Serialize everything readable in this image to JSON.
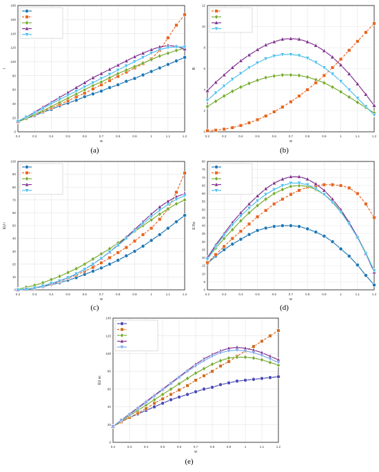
{
  "chart_data": [
    {
      "type": "line",
      "caption": "(a)",
      "xlabel": "w",
      "ylabel": "l",
      "xlim": [
        0.2,
        1.2
      ],
      "ylim": [
        0,
        180
      ],
      "xticks": [
        "0.2",
        "0.3",
        "0.4",
        "0.5",
        "0.6",
        "0.7",
        "0.8",
        "0.9",
        "1",
        "1.1",
        "1.2"
      ],
      "yticks": [
        "0",
        "20",
        "40",
        "60",
        "80",
        "100",
        "120",
        "140",
        "160",
        "180"
      ],
      "grid": true,
      "legend_position": "top-left",
      "x": [
        0.2,
        0.25,
        0.3,
        0.35,
        0.4,
        0.45,
        0.5,
        0.55,
        0.6,
        0.65,
        0.7,
        0.75,
        0.8,
        0.85,
        0.9,
        0.95,
        1.0,
        1.05,
        1.1,
        1.15,
        1.2
      ],
      "series": [
        {
          "name": "",
          "color": "#1f77b4",
          "marker": "circle",
          "dash": false,
          "values": [
            15,
            19,
            23,
            28,
            32,
            37,
            41,
            45,
            50,
            54,
            58,
            63,
            67,
            72,
            76,
            81,
            86,
            91,
            96,
            101,
            106
          ]
        },
        {
          "name": "",
          "color": "#e8641e",
          "marker": "square",
          "dash": true,
          "values": [
            14,
            19,
            24,
            29,
            34,
            39,
            44,
            50,
            55,
            61,
            67,
            73,
            79,
            85,
            91,
            97,
            104,
            116,
            134,
            152,
            167
          ]
        },
        {
          "name": "",
          "color": "#77ac30",
          "marker": "diamond",
          "dash": false,
          "values": [
            14,
            19,
            25,
            30,
            36,
            42,
            48,
            54,
            60,
            66,
            71,
            77,
            83,
            88,
            93,
            98,
            103,
            108,
            112,
            116,
            119
          ]
        },
        {
          "name": "",
          "color": "#7e2f8e",
          "marker": "triangle-up",
          "dash": false,
          "values": [
            15,
            21,
            28,
            35,
            42,
            49,
            56,
            63,
            70,
            77,
            83,
            89,
            95,
            101,
            107,
            112,
            117,
            121,
            123,
            122,
            118
          ]
        },
        {
          "name": "",
          "color": "#4dbeee",
          "marker": "triangle-down",
          "dash": false,
          "values": [
            15,
            21,
            27,
            33,
            40,
            46,
            52,
            58,
            64,
            70,
            76,
            82,
            88,
            94,
            100,
            106,
            112,
            117,
            120,
            121,
            121
          ]
        }
      ]
    },
    {
      "type": "line",
      "caption": "(b)",
      "xlabel": "w",
      "ylabel": "B",
      "xlim": [
        0.2,
        1.2
      ],
      "ylim": [
        0,
        12
      ],
      "xticks": [
        "0.2",
        "0.3",
        "0.4",
        "0.5",
        "0.6",
        "0.7",
        "0.8",
        "0.9",
        "1",
        "1.1",
        "1.2"
      ],
      "yticks": [
        "0",
        "2",
        "4",
        "6",
        "8",
        "10",
        "12"
      ],
      "grid": true,
      "legend_position": "top-left",
      "x": [
        0.2,
        0.25,
        0.3,
        0.35,
        0.4,
        0.45,
        0.5,
        0.55,
        0.6,
        0.65,
        0.7,
        0.75,
        0.8,
        0.85,
        0.9,
        0.95,
        1.0,
        1.05,
        1.1,
        1.15,
        1.2
      ],
      "series": [
        {
          "name": "",
          "color": "#e8641e",
          "marker": "square",
          "dash": true,
          "values": [
            0.1,
            0.15,
            0.25,
            0.4,
            0.6,
            0.85,
            1.15,
            1.5,
            1.9,
            2.35,
            2.85,
            3.4,
            4.0,
            4.65,
            5.35,
            6.1,
            6.9,
            7.75,
            8.6,
            9.45,
            10.3
          ]
        },
        {
          "name": "",
          "color": "#77ac30",
          "marker": "diamond",
          "dash": false,
          "values": [
            2.4,
            2.9,
            3.4,
            3.85,
            4.25,
            4.6,
            4.9,
            5.15,
            5.3,
            5.4,
            5.4,
            5.35,
            5.2,
            4.95,
            4.65,
            4.25,
            3.8,
            3.3,
            2.8,
            2.3,
            1.8
          ]
        },
        {
          "name": "",
          "color": "#7e2f8e",
          "marker": "triangle-up",
          "dash": false,
          "values": [
            3.9,
            4.7,
            5.4,
            6.1,
            6.75,
            7.3,
            7.8,
            8.25,
            8.55,
            8.8,
            8.85,
            8.8,
            8.55,
            8.2,
            7.7,
            7.1,
            6.35,
            5.5,
            4.55,
            3.55,
            2.5
          ]
        },
        {
          "name": "",
          "color": "#4dbeee",
          "marker": "triangle-down",
          "dash": false,
          "values": [
            3.0,
            3.7,
            4.35,
            5.0,
            5.55,
            6.1,
            6.55,
            6.95,
            7.2,
            7.35,
            7.35,
            7.25,
            7.0,
            6.6,
            6.1,
            5.5,
            4.8,
            4.0,
            3.2,
            2.4,
            1.6
          ]
        }
      ]
    },
    {
      "type": "line",
      "caption": "(c)",
      "xlabel": "w",
      "ylabel": "EU r",
      "xlim": [
        0.2,
        1.2
      ],
      "ylim": [
        0,
        100
      ],
      "xticks": [
        "0.2",
        "0.3",
        "0.4",
        "0.5",
        "0.6",
        "0.7",
        "0.8",
        "0.9",
        "1",
        "1.1",
        "1.2"
      ],
      "yticks": [
        "0",
        "10",
        "20",
        "30",
        "40",
        "50",
        "60",
        "70",
        "80",
        "90",
        "100"
      ],
      "grid": true,
      "legend_position": "top-left",
      "x": [
        0.2,
        0.25,
        0.3,
        0.35,
        0.4,
        0.45,
        0.5,
        0.55,
        0.6,
        0.65,
        0.7,
        0.75,
        0.8,
        0.85,
        0.9,
        0.95,
        1.0,
        1.05,
        1.1,
        1.15,
        1.2
      ],
      "series": [
        {
          "name": "",
          "color": "#1f77b4",
          "marker": "circle",
          "dash": false,
          "values": [
            0,
            0.5,
            1.5,
            2.5,
            4,
            5.5,
            7.5,
            9.5,
            12,
            14.5,
            17,
            20,
            23,
            26.5,
            30,
            34,
            38.5,
            43,
            48,
            53,
            58
          ]
        },
        {
          "name": "",
          "color": "#e8641e",
          "marker": "square",
          "dash": true,
          "values": [
            0,
            0.5,
            1.5,
            3,
            4.5,
            6.5,
            9,
            11.5,
            14.5,
            17.5,
            21,
            25,
            29,
            33,
            38,
            43,
            48,
            55,
            63,
            76,
            91
          ]
        },
        {
          "name": "",
          "color": "#77ac30",
          "marker": "diamond",
          "dash": false,
          "values": [
            0.5,
            2,
            3.5,
            5.5,
            8,
            10.5,
            13.5,
            16.5,
            20,
            24,
            28,
            32,
            36.5,
            41,
            45.5,
            50,
            54.5,
            59,
            63,
            67,
            70
          ]
        },
        {
          "name": "",
          "color": "#7e2f8e",
          "marker": "triangle-up",
          "dash": false,
          "values": [
            0,
            0.5,
            1.5,
            3,
            5,
            7,
            9.5,
            12.5,
            16,
            20,
            24.5,
            29.5,
            35,
            41,
            47,
            53,
            59,
            64.5,
            69,
            72.5,
            75
          ]
        },
        {
          "name": "",
          "color": "#4dbeee",
          "marker": "triangle-down",
          "dash": false,
          "values": [
            0,
            0.5,
            1.5,
            3,
            5,
            7,
            9.5,
            12.5,
            16,
            20,
            24.5,
            29.5,
            34.5,
            40,
            46,
            51.5,
            57,
            62,
            66.5,
            70.5,
            73.5
          ]
        }
      ]
    },
    {
      "type": "line",
      "caption": "(d)",
      "xlabel": "w",
      "ylabel": "E Ro",
      "xlim": [
        0.2,
        1.2
      ],
      "ylim": [
        0,
        80
      ],
      "xticks": [
        "0.2",
        "0.3",
        "0.4",
        "0.5",
        "0.6",
        "0.7",
        "0.8",
        "0.9",
        "1",
        "1.1",
        "1.2"
      ],
      "yticks": [
        "0",
        "5",
        "10",
        "15",
        "20",
        "25",
        "30",
        "35",
        "40",
        "45",
        "50",
        "55",
        "60",
        "65",
        "70",
        "75",
        "80"
      ],
      "grid": true,
      "legend_position": "top-left",
      "x": [
        0.2,
        0.25,
        0.3,
        0.35,
        0.4,
        0.45,
        0.5,
        0.55,
        0.6,
        0.65,
        0.7,
        0.75,
        0.8,
        0.85,
        0.9,
        0.95,
        1.0,
        1.05,
        1.1,
        1.15,
        1.2
      ],
      "series": [
        {
          "name": "",
          "color": "#1f77b4",
          "marker": "circle",
          "dash": false,
          "values": [
            16.5,
            21,
            25,
            28.5,
            31.5,
            34.5,
            37,
            38.5,
            39.5,
            40,
            40,
            39.5,
            38,
            36,
            33.5,
            30,
            25.5,
            21,
            15.5,
            9,
            3
          ]
        },
        {
          "name": "",
          "color": "#e8641e",
          "marker": "square",
          "dash": true,
          "values": [
            17,
            22,
            27,
            32,
            36.5,
            41,
            45.5,
            49.5,
            53.5,
            56.5,
            59.5,
            62,
            64,
            65,
            65.5,
            65.5,
            65,
            63.5,
            60,
            53.5,
            45
          ]
        },
        {
          "name": "",
          "color": "#77ac30",
          "marker": "diamond",
          "dash": false,
          "values": [
            19.5,
            26,
            32,
            37.5,
            43,
            48,
            52.5,
            56.5,
            60,
            62.5,
            64.5,
            65,
            64.5,
            62.5,
            59.5,
            55,
            49,
            41.5,
            33,
            23,
            12
          ]
        },
        {
          "name": "",
          "color": "#7e2f8e",
          "marker": "triangle-up",
          "dash": false,
          "values": [
            20,
            28,
            35,
            42,
            48,
            53.5,
            58.5,
            63,
            66.5,
            69,
            70.5,
            70.5,
            69,
            66,
            62,
            56.5,
            50,
            42,
            33,
            22.5,
            11
          ]
        },
        {
          "name": "",
          "color": "#4dbeee",
          "marker": "triangle-down",
          "dash": false,
          "values": [
            19,
            27,
            34,
            40.5,
            46,
            51,
            55.5,
            59.5,
            62.5,
            65,
            66.5,
            66.5,
            65.5,
            63,
            59.5,
            54.5,
            48.5,
            41,
            32.5,
            22.5,
            12
          ]
        }
      ]
    },
    {
      "type": "line",
      "caption": "(e)",
      "xlabel": "w",
      "ylabel": "EU sc",
      "xlim": [
        0.2,
        1.2
      ],
      "ylim": [
        0,
        140
      ],
      "xticks": [
        "0.2",
        "0.3",
        "0.4",
        "0.5",
        "0.6",
        "0.7",
        "0.8",
        "0.9",
        "1",
        "1.1",
        "1.2"
      ],
      "yticks": [
        "0",
        "20",
        "40",
        "60",
        "80",
        "100",
        "120",
        "140"
      ],
      "grid": true,
      "legend_position": "top-left",
      "x": [
        0.2,
        0.25,
        0.3,
        0.35,
        0.4,
        0.45,
        0.5,
        0.55,
        0.6,
        0.65,
        0.7,
        0.75,
        0.8,
        0.85,
        0.9,
        0.95,
        1.0,
        1.05,
        1.1,
        1.15,
        1.2
      ],
      "series": [
        {
          "name": "",
          "color": "#4a4ab4",
          "marker": "circle",
          "dash": false,
          "values": [
            18,
            23,
            28,
            32,
            36,
            40,
            44,
            48,
            51,
            54,
            57,
            60,
            62,
            65,
            67,
            69,
            70,
            71,
            72,
            73,
            74
          ]
        },
        {
          "name": "",
          "color": "#d26c1e",
          "marker": "square",
          "dash": true,
          "values": [
            18,
            23,
            28,
            33,
            38,
            44,
            49,
            54,
            59,
            64,
            70,
            75,
            80,
            86,
            91,
            97,
            103,
            108,
            114,
            120,
            126
          ]
        },
        {
          "name": "",
          "color": "#77ac30",
          "marker": "diamond",
          "dash": false,
          "values": [
            18,
            24,
            30,
            36,
            42,
            48,
            54,
            60,
            66,
            72,
            78,
            83,
            88,
            92,
            95,
            96,
            96,
            95,
            93,
            90,
            87
          ]
        },
        {
          "name": "",
          "color": "#7e2f8e",
          "marker": "triangle-up",
          "dash": false,
          "values": [
            18,
            25,
            32,
            39,
            46,
            53,
            60,
            67,
            74,
            81,
            88,
            94,
            99,
            103,
            106,
            107,
            106,
            104,
            101,
            97,
            93
          ]
        },
        {
          "name": "",
          "color": "#7ea6ec",
          "marker": "triangle-down",
          "dash": false,
          "values": [
            18,
            25,
            31,
            38,
            45,
            52,
            59,
            66,
            73,
            80,
            86,
            92,
            97,
            101,
            103,
            104,
            103,
            101,
            98,
            94,
            90
          ]
        }
      ]
    }
  ]
}
